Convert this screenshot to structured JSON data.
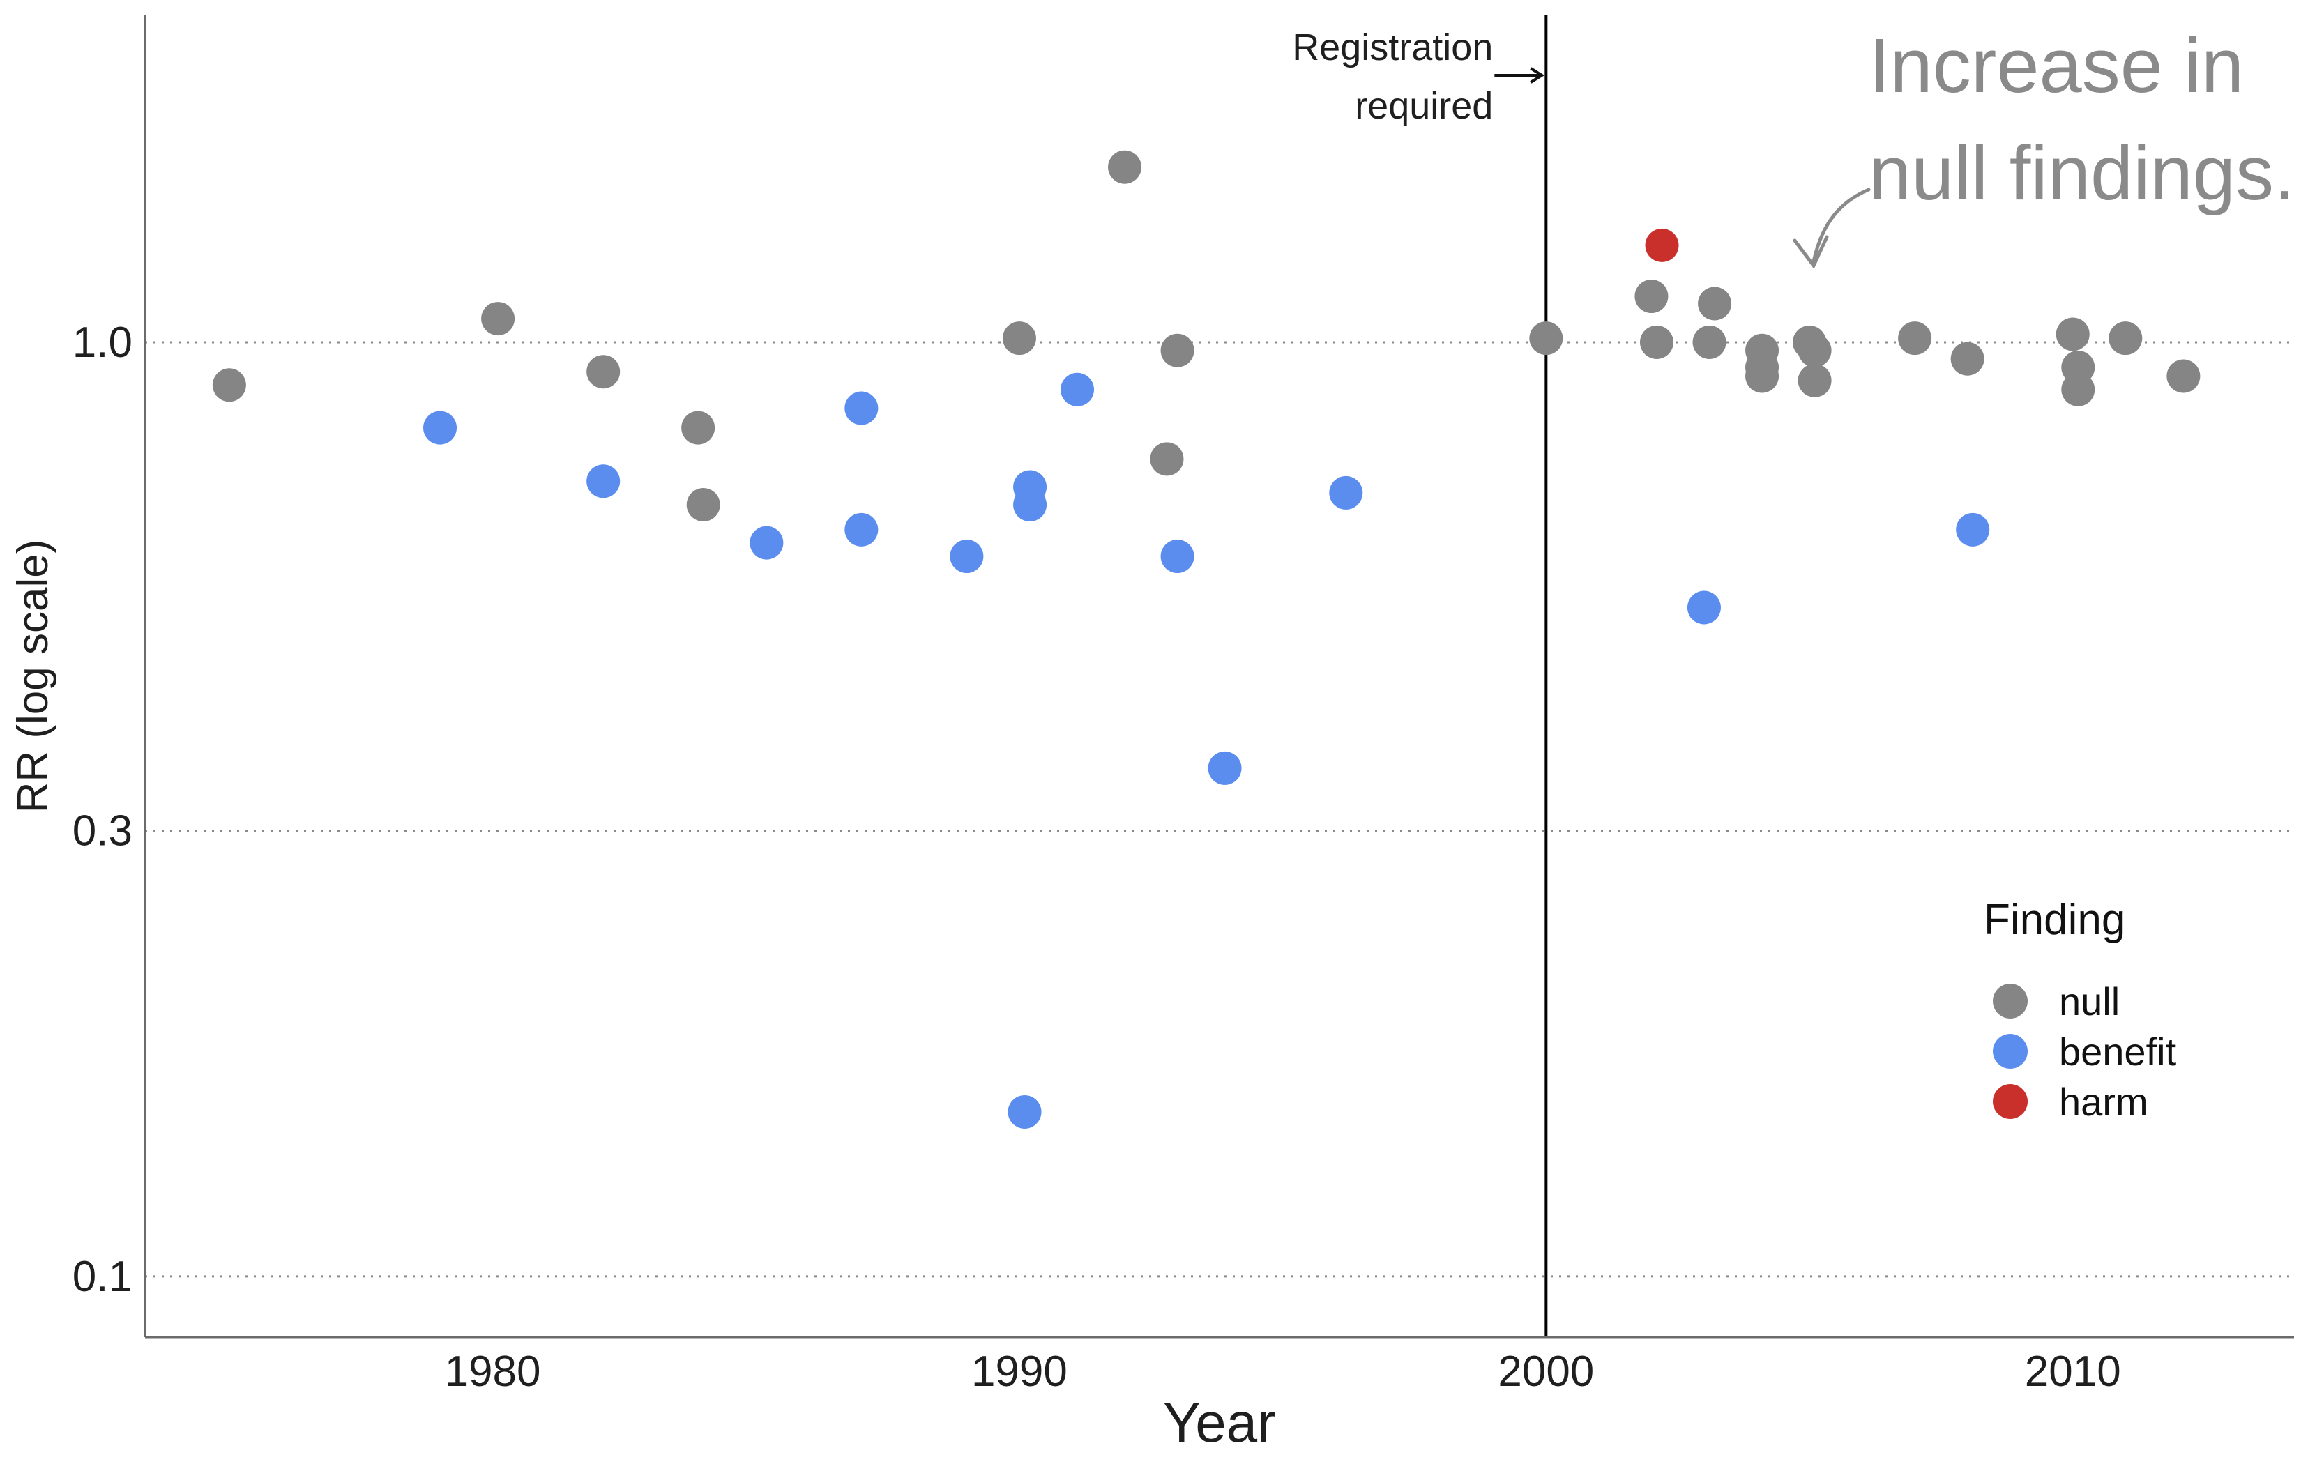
{
  "chart_data": {
    "type": "scatter",
    "xlabel": "Year",
    "ylabel": "RR (log scale)",
    "xlim": [
      1973.4,
      2014.2
    ],
    "ylim_log10": [
      -1.065,
      0.35
    ],
    "y_scale": "log",
    "x_ticks": [
      1980,
      1990,
      2000,
      2010
    ],
    "x_tick_labels": [
      "1980",
      "1990",
      "2000",
      "2010"
    ],
    "y_ticks": [
      0.1,
      0.3,
      1.0
    ],
    "y_tick_labels": [
      "0.1",
      "0.3",
      "1.0"
    ],
    "grid": "dotted horizontal lines at y ticks",
    "vline": {
      "x": 2000,
      "label_line1": "Registration",
      "label_line2": "required"
    },
    "annotation": {
      "line1": "Increase in",
      "line2": "null findings."
    },
    "legend": {
      "title": "Finding",
      "position": "right",
      "entries": [
        {
          "name": "null",
          "color": "#858585"
        },
        {
          "name": "benefit",
          "color": "#5b8def"
        },
        {
          "name": "harm",
          "color": "#c9302c"
        }
      ]
    },
    "series": [
      {
        "name": "null",
        "color": "#858585",
        "points": [
          [
            1975.0,
            0.9
          ],
          [
            1980.1,
            1.06
          ],
          [
            1982.1,
            0.93
          ],
          [
            1983.9,
            0.81
          ],
          [
            1984.0,
            0.67
          ],
          [
            1990.0,
            1.01
          ],
          [
            1992.0,
            1.54
          ],
          [
            1993.0,
            0.98
          ],
          [
            1992.8,
            0.75
          ],
          [
            2000.0,
            1.01
          ],
          [
            2002.0,
            1.12
          ],
          [
            2002.1,
            1.0
          ],
          [
            2003.1,
            1.0
          ],
          [
            2003.2,
            1.1
          ],
          [
            2004.1,
            0.98
          ],
          [
            2004.1,
            0.94
          ],
          [
            2004.1,
            0.92
          ],
          [
            2005.0,
            1.0
          ],
          [
            2005.1,
            0.98
          ],
          [
            2005.1,
            0.91
          ],
          [
            2007.0,
            1.01
          ],
          [
            2008.0,
            0.96
          ],
          [
            2010.0,
            1.02
          ],
          [
            2010.1,
            0.94
          ],
          [
            2010.1,
            0.89
          ],
          [
            2011.0,
            1.01
          ],
          [
            2012.1,
            0.92
          ]
        ]
      },
      {
        "name": "benefit",
        "color": "#5b8def",
        "points": [
          [
            1979.0,
            0.81
          ],
          [
            1982.1,
            0.71
          ],
          [
            1985.2,
            0.61
          ],
          [
            1987.0,
            0.85
          ],
          [
            1987.0,
            0.63
          ],
          [
            1989.0,
            0.59
          ],
          [
            1990.2,
            0.7
          ],
          [
            1990.2,
            0.67
          ],
          [
            1990.1,
            0.15
          ],
          [
            1991.1,
            0.89
          ],
          [
            1993.0,
            0.59
          ],
          [
            1993.9,
            0.35
          ],
          [
            1996.2,
            0.69
          ],
          [
            2003.0,
            0.52
          ],
          [
            2008.1,
            0.63
          ]
        ]
      },
      {
        "name": "harm",
        "color": "#c9302c",
        "points": [
          [
            2002.2,
            1.27
          ]
        ]
      }
    ]
  }
}
